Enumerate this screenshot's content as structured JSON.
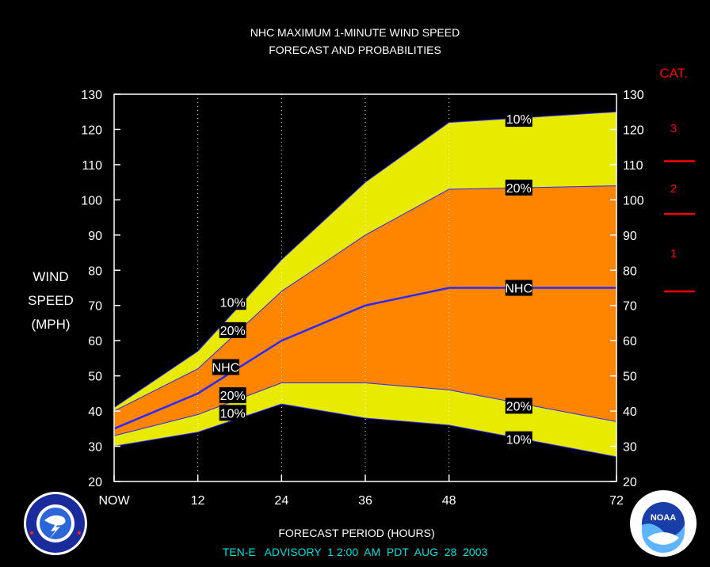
{
  "title_line1": "NHC MAXIMUM 1-MINUTE WIND SPEED",
  "title_line2": "FORECAST AND PROBABILITIES",
  "ylabel_lines": [
    "WIND",
    "SPEED",
    "(MPH)"
  ],
  "xlabel": "FORECAST PERIOD (HOURS)",
  "footer": "TEN-E   ADVISORY  1 2:00  AM  PDT  AUG  28  2003",
  "cat_header": "CAT.",
  "categories": [
    {
      "label": "3",
      "lower_mph": 111
    },
    {
      "label": "2",
      "lower_mph": 96
    },
    {
      "label": "1",
      "lower_mph": 74
    }
  ],
  "chart_data": {
    "type": "area",
    "x_tick_labels": [
      {
        "x": 0,
        "label": "NOW"
      },
      {
        "x": 12,
        "label": "12"
      },
      {
        "x": 24,
        "label": "24"
      },
      {
        "x": 36,
        "label": "36"
      },
      {
        "x": 48,
        "label": "48"
      },
      {
        "x": 72,
        "label": "72"
      }
    ],
    "xlim": [
      0,
      72
    ],
    "ylim": [
      20,
      130
    ],
    "yticks": [
      20,
      30,
      40,
      50,
      60,
      70,
      80,
      90,
      100,
      110,
      120,
      130
    ],
    "x": [
      0,
      12,
      24,
      36,
      48,
      72
    ],
    "upper_10": [
      41,
      57,
      83,
      105,
      122,
      125
    ],
    "upper_20": [
      40,
      52,
      74,
      90,
      103,
      104
    ],
    "nhc": [
      35,
      45,
      60,
      70,
      75,
      75
    ],
    "lower_20": [
      33,
      39,
      48,
      48,
      46,
      37
    ],
    "lower_10": [
      30,
      34,
      42,
      38,
      36,
      27
    ],
    "dotted_gridlines_x": [
      12,
      24,
      36,
      48
    ],
    "series_labels": [
      {
        "text": "10%",
        "x": 17,
        "y": 71
      },
      {
        "text": "20%",
        "x": 17,
        "y": 63
      },
      {
        "text": "NHC",
        "x": 16,
        "y": 52.5
      },
      {
        "text": "20%",
        "x": 17,
        "y": 44.5
      },
      {
        "text": "10%",
        "x": 17,
        "y": 39.5
      },
      {
        "text": "10%",
        "x": 58,
        "y": 123
      },
      {
        "text": "20%",
        "x": 58,
        "y": 103.5
      },
      {
        "text": "NHC",
        "x": 58,
        "y": 75
      },
      {
        "text": "20%",
        "x": 58,
        "y": 41.5
      },
      {
        "text": "10%",
        "x": 58,
        "y": 32
      }
    ],
    "colors": {
      "outer_band": "#e8ea00",
      "inner_band": "#ff8400",
      "nhc_line": "#2828ff",
      "category_marks": "#ff0000",
      "footer_text": "#00e0e0"
    }
  },
  "logos": {
    "left": "nws-logo",
    "right": "noaa-logo"
  }
}
